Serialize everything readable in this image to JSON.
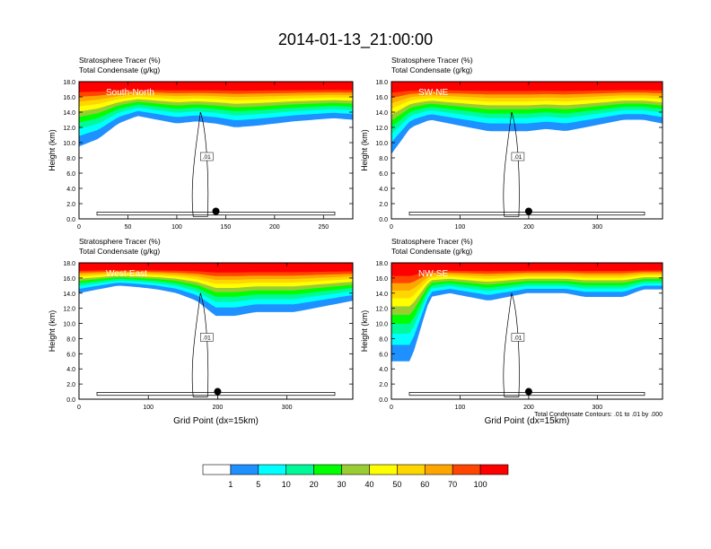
{
  "title": "2014-01-13_21:00:00",
  "footnote": "Total Condensate Contours: .01 to .01 by .000",
  "colorbar": {
    "labels": [
      "1",
      "5",
      "10",
      "20",
      "30",
      "40",
      "50",
      "60",
      "70",
      "100"
    ],
    "colors": [
      "#ffffff",
      "#1e90ff",
      "#00ffff",
      "#00fa9a",
      "#00ff00",
      "#9acd32",
      "#ffff00",
      "#ffd700",
      "#ffa500",
      "#ff4500",
      "#ff0000"
    ]
  },
  "chart_data": [
    {
      "type": "heatmap",
      "panel": "top-left",
      "header_line1": "Stratosphere Tracer   (%)",
      "header_line2": "Total Condensate   (g/kg)",
      "label": "South-North",
      "xlabel": "",
      "ylabel": "Height (km)",
      "xlim": [
        0,
        280
      ],
      "ylim": [
        0,
        18
      ],
      "xticks": [
        "0",
        "50",
        "100",
        "150",
        "200",
        "250"
      ],
      "yticks": [
        "0.0",
        "2.0",
        "4.0",
        "6.0",
        "8.0",
        "10.0",
        "12.0",
        "14.0",
        "16.0",
        "18.0"
      ],
      "contour_label": ".01",
      "tracer_base_km": [
        9.5,
        10.5,
        12.5,
        13.5,
        13.0,
        12.5,
        12.8,
        12.5,
        12.0,
        12.2,
        12.5,
        12.8,
        13.0,
        13.2,
        13.0
      ],
      "marker_x": 140
    },
    {
      "type": "heatmap",
      "panel": "top-right",
      "header_line1": "Stratosphere Tracer   (%)",
      "header_line2": "Total Condensate   (g/kg)",
      "label": "SW-NE",
      "xlabel": "",
      "ylabel": "Height (km)",
      "xlim": [
        0,
        395
      ],
      "ylim": [
        0,
        18
      ],
      "xticks": [
        "0",
        "100",
        "200",
        "300"
      ],
      "yticks": [
        "0.0",
        "2.0",
        "4.0",
        "6.0",
        "8.0",
        "10.0",
        "12.0",
        "14.0",
        "16.0",
        "18.0"
      ],
      "contour_label": ".01",
      "tracer_base_km": [
        8.5,
        12.0,
        13.0,
        12.5,
        12.0,
        11.5,
        11.5,
        11.5,
        11.8,
        11.5,
        12.0,
        12.5,
        13.0,
        13.0,
        12.5
      ],
      "marker_x": 200
    },
    {
      "type": "heatmap",
      "panel": "bottom-left",
      "header_line1": "Stratosphere Tracer   (%)",
      "header_line2": "Total Condensate   (g/kg)",
      "label": "West-East",
      "xlabel": "Grid Point (dx=15km)",
      "ylabel": "Height (km)",
      "xlim": [
        0,
        395
      ],
      "ylim": [
        0,
        18
      ],
      "xticks": [
        "0",
        "100",
        "200",
        "300"
      ],
      "yticks": [
        "0.0",
        "2.0",
        "4.0",
        "6.0",
        "8.0",
        "10.0",
        "12.0",
        "14.0",
        "16.0",
        "18.0"
      ],
      "contour_label": ".01",
      "tracer_base_km": [
        14.0,
        14.5,
        15.0,
        14.8,
        14.5,
        14.0,
        13.0,
        11.0,
        11.0,
        11.5,
        11.5,
        11.5,
        12.0,
        12.5,
        13.0
      ],
      "marker_x": 200
    },
    {
      "type": "heatmap",
      "panel": "bottom-right",
      "header_line1": "Stratosphere Tracer   (%)",
      "header_line2": "Total Condensate   (g/kg)",
      "label": "NW-SE",
      "xlabel": "Grid Point (dx=15km)",
      "ylabel": "Height (km)",
      "xlim": [
        0,
        395
      ],
      "ylim": [
        0,
        18
      ],
      "xticks": [
        "0",
        "100",
        "200",
        "300"
      ],
      "yticks": [
        "0.0",
        "2.0",
        "4.0",
        "6.0",
        "8.0",
        "10.0",
        "12.0",
        "14.0",
        "16.0",
        "18.0"
      ],
      "contour_label": ".01",
      "tracer_base_km": [
        5.0,
        5.0,
        13.5,
        14.0,
        13.5,
        13.0,
        13.5,
        14.0,
        14.0,
        14.0,
        13.5,
        13.5,
        13.5,
        14.5,
        14.5
      ],
      "marker_x": 200
    }
  ]
}
